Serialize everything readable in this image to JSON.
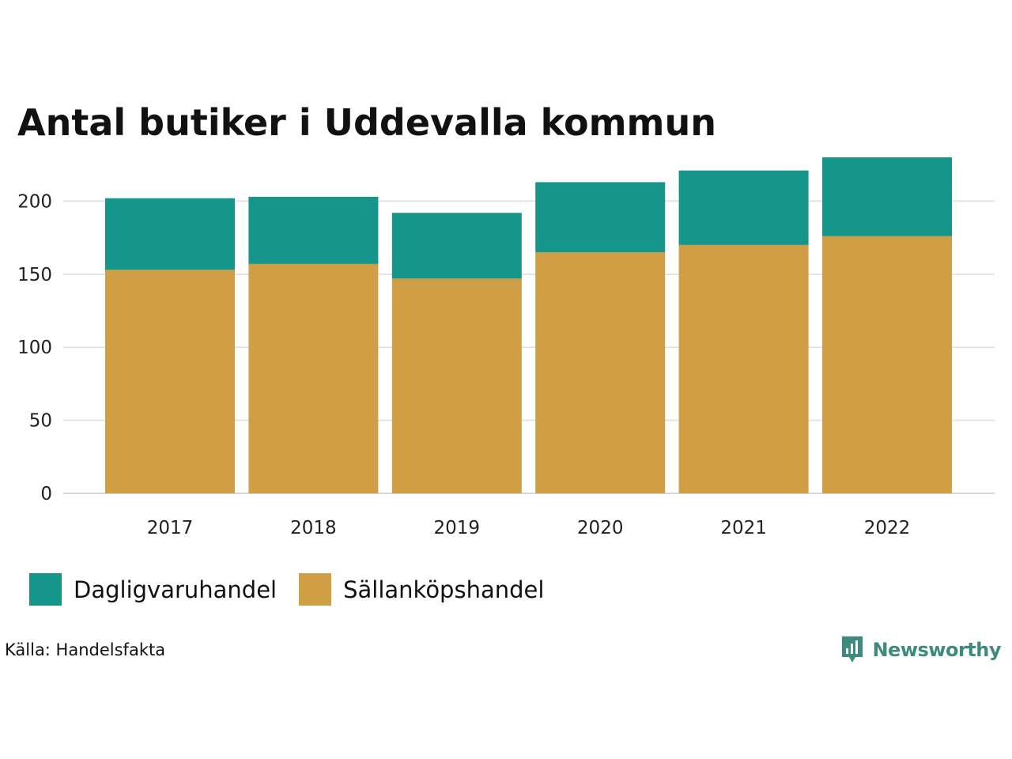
{
  "chart_data": {
    "type": "bar",
    "stacked": true,
    "title": "Antal butiker i Uddevalla kommun",
    "categories": [
      "2017",
      "2018",
      "2019",
      "2020",
      "2021",
      "2022"
    ],
    "series": [
      {
        "name": "Sällanköpshandel",
        "color": "#d09f45",
        "values": [
          153,
          157,
          147,
          165,
          170,
          176
        ]
      },
      {
        "name": "Dagligvaruhandel",
        "color": "#16968a",
        "values": [
          49,
          46,
          45,
          48,
          51,
          54
        ]
      }
    ],
    "y_ticks": [
      0,
      50,
      100,
      150,
      200
    ],
    "ylim": [
      0,
      230
    ],
    "xlabel": "",
    "ylabel": "",
    "grid": true,
    "legend_position": "bottom-left"
  },
  "legend": [
    {
      "label": "Dagligvaruhandel",
      "color": "#16968a"
    },
    {
      "label": "Sällanköpshandel",
      "color": "#d09f45"
    }
  ],
  "source": "Källa: Handelsfakta",
  "brand": {
    "name": "Newsworthy",
    "color": "#3f8a7e",
    "icon": "newsworthy-logo-icon"
  }
}
